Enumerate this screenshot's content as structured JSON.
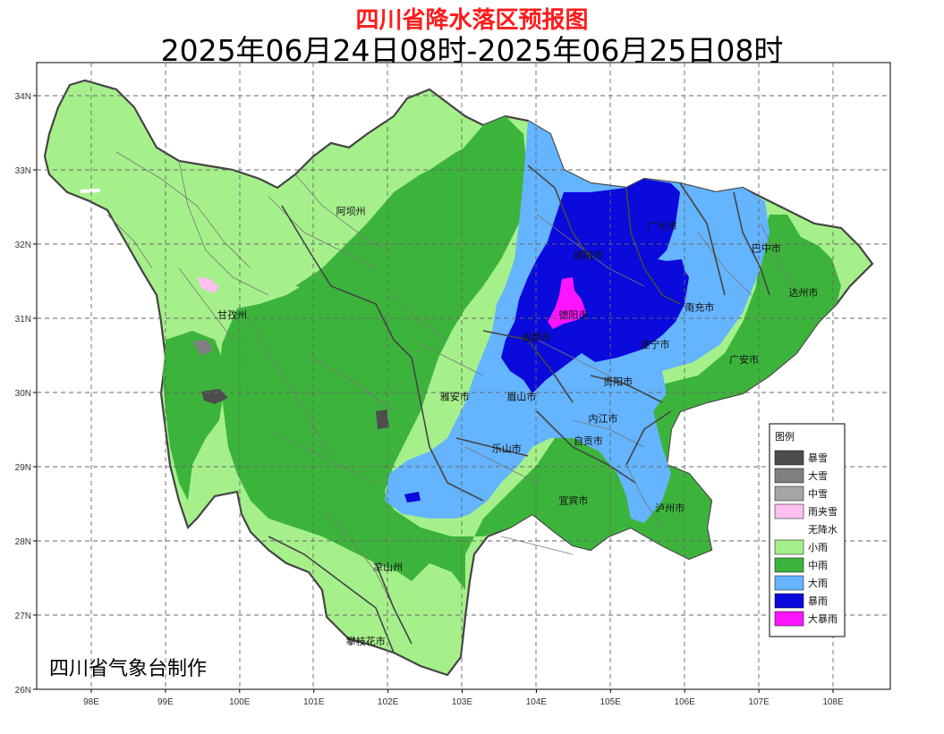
{
  "title": "四川省降水落区预报图",
  "subtitle": "2025年06月24日08时-2025年06月25日08时",
  "credit": "四川省气象台制作",
  "colors": {
    "title": "#ff1a1a",
    "heavy_snow": "#4d4d4d",
    "big_snow": "#808080",
    "mid_snow": "#a6a6a6",
    "sleet": "#ffbff0",
    "none": "#ffffff",
    "light_rain": "#a6f08c",
    "moderate_rain": "#3cb43c",
    "heavy_rain": "#64b4ff",
    "rainstorm": "#0a0adc",
    "heavy_rainstorm": "#ff14ff"
  },
  "axes": {
    "x_ticks": [
      "98E",
      "99E",
      "100E",
      "101E",
      "102E",
      "103E",
      "104E",
      "105E",
      "106E",
      "107E",
      "108E"
    ],
    "y_ticks": [
      "26N",
      "27N",
      "28N",
      "29N",
      "30N",
      "31N",
      "32N",
      "33N",
      "34N"
    ]
  },
  "legend": {
    "title": "图例",
    "items": [
      {
        "label": "暴雪",
        "color": "#4d4d4d"
      },
      {
        "label": "大雪",
        "color": "#808080"
      },
      {
        "label": "中雪",
        "color": "#a6a6a6"
      },
      {
        "label": "雨夹雪",
        "color": "#ffbff0"
      },
      {
        "label": "无降水",
        "color": "#ffffff"
      },
      {
        "label": "小雨",
        "color": "#a6f08c"
      },
      {
        "label": "中雨",
        "color": "#3cb43c"
      },
      {
        "label": "大雨",
        "color": "#64b4ff"
      },
      {
        "label": "暴雨",
        "color": "#0a0adc"
      },
      {
        "label": "大暴雨",
        "color": "#ff14ff"
      }
    ]
  },
  "cities": [
    {
      "name": "阿坝州",
      "lon": 101.5,
      "lat": 32.4
    },
    {
      "name": "甘孜州",
      "lon": 99.9,
      "lat": 31.0
    },
    {
      "name": "绵阳市",
      "lon": 104.7,
      "lat": 31.8
    },
    {
      "name": "德阳市",
      "lon": 104.5,
      "lat": 31.0
    },
    {
      "name": "成都市",
      "lon": 104.0,
      "lat": 30.7
    },
    {
      "name": "广元市",
      "lon": 105.7,
      "lat": 32.2
    },
    {
      "name": "巴中市",
      "lon": 107.1,
      "lat": 31.9
    },
    {
      "name": "南充市",
      "lon": 106.2,
      "lat": 31.1
    },
    {
      "name": "达州市",
      "lon": 107.6,
      "lat": 31.3
    },
    {
      "name": "遂宁市",
      "lon": 105.6,
      "lat": 30.6
    },
    {
      "name": "广安市",
      "lon": 106.8,
      "lat": 30.4
    },
    {
      "name": "资阳市",
      "lon": 105.1,
      "lat": 30.1
    },
    {
      "name": "雅安市",
      "lon": 102.9,
      "lat": 29.9
    },
    {
      "name": "眉山市",
      "lon": 103.8,
      "lat": 29.9
    },
    {
      "name": "内江市",
      "lon": 104.9,
      "lat": 29.6
    },
    {
      "name": "乐山市",
      "lon": 103.6,
      "lat": 29.2
    },
    {
      "name": "自贡市",
      "lon": 104.7,
      "lat": 29.3
    },
    {
      "name": "宜宾市",
      "lon": 104.5,
      "lat": 28.5
    },
    {
      "name": "泸州市",
      "lon": 105.8,
      "lat": 28.4
    },
    {
      "name": "凉山州",
      "lon": 102.0,
      "lat": 27.6
    },
    {
      "name": "攀枝花市",
      "lon": 101.7,
      "lat": 26.6
    }
  ]
}
